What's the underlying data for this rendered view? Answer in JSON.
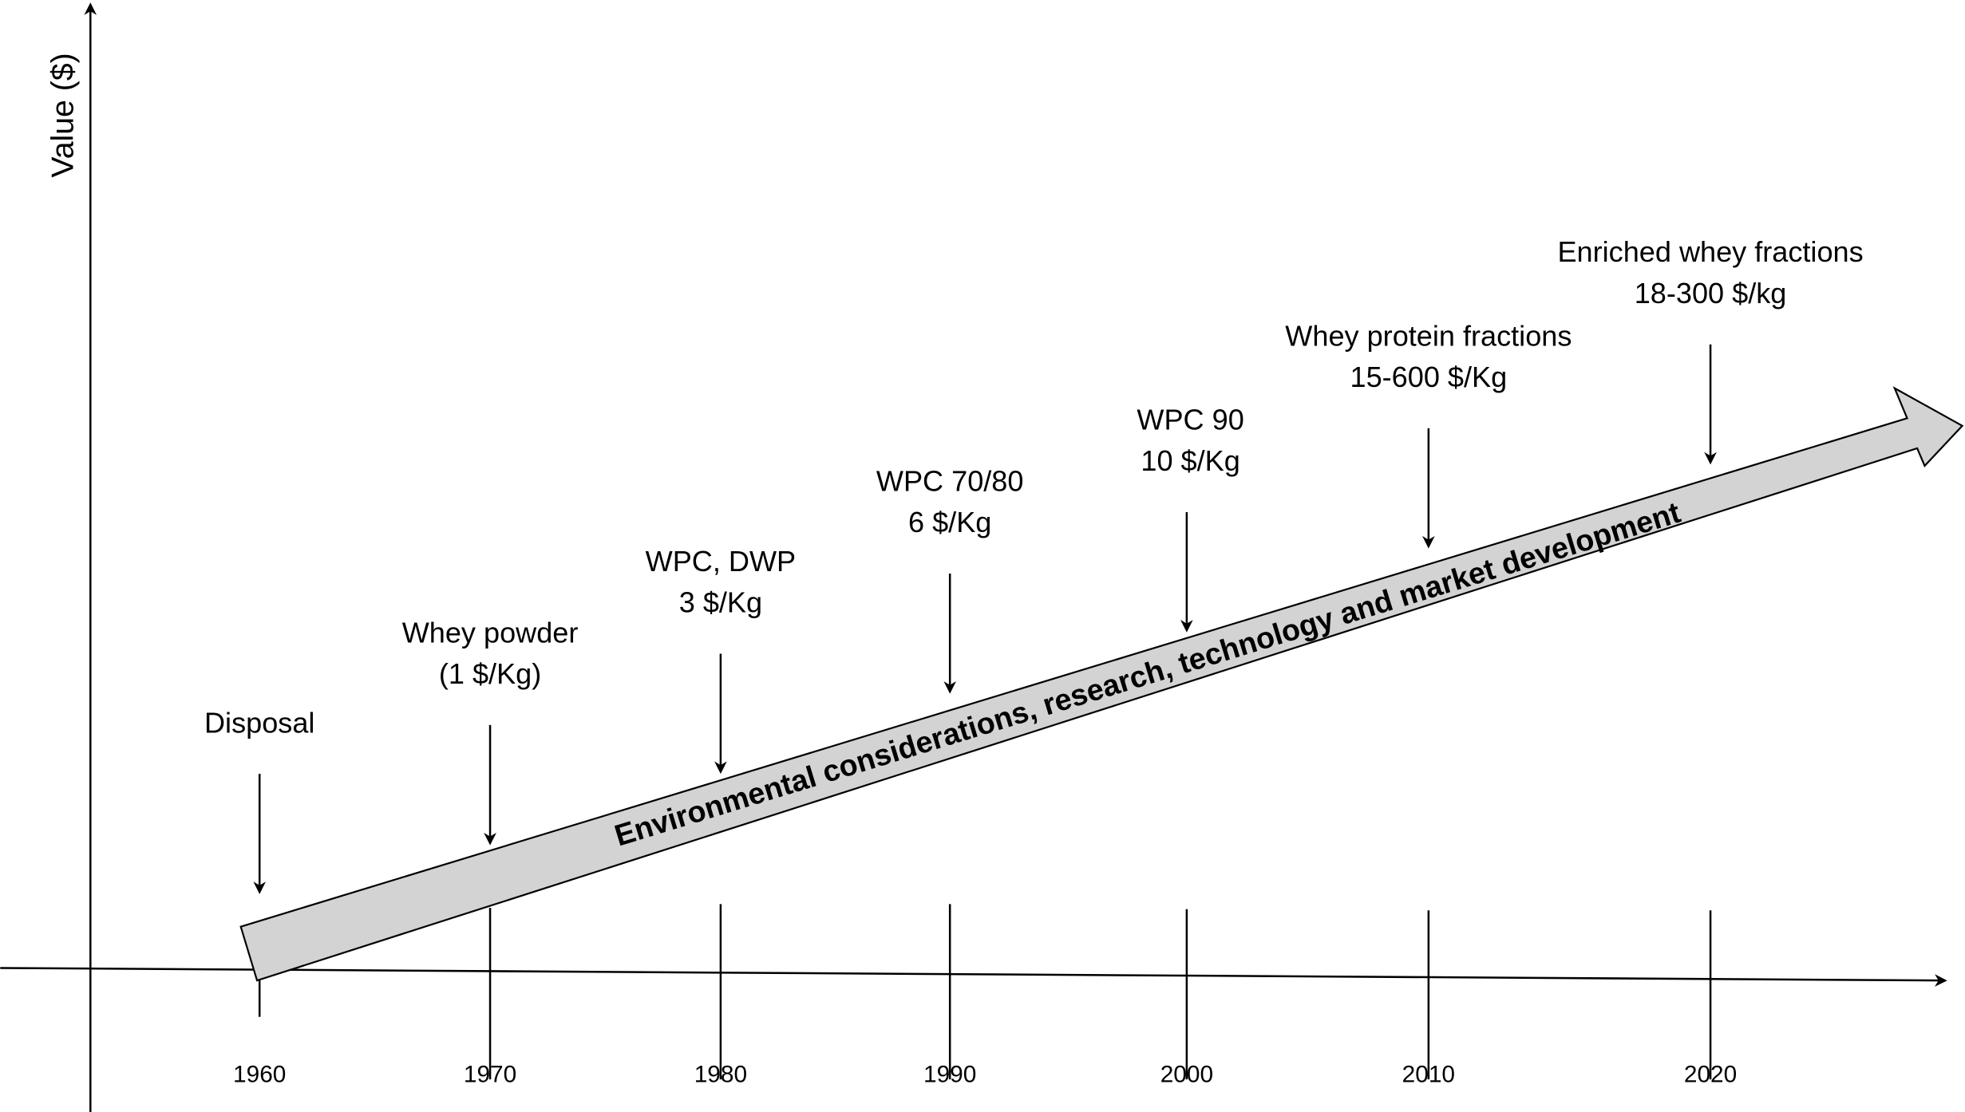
{
  "y_axis_label": "Value ($)",
  "band_text": "Environmental considerations, research, technology and market development",
  "band_fill": "#d3d3d3",
  "years": [
    "1960",
    "1970",
    "1980",
    "1990",
    "2000",
    "2010",
    "2020"
  ],
  "milestones": [
    {
      "year": "1960",
      "line1": "Disposal",
      "line2": ""
    },
    {
      "year": "1970",
      "line1": "Whey powder",
      "line2": "(1 $/Kg)"
    },
    {
      "year": "1980",
      "line1": "WPC, DWP",
      "line2": "3 $/Kg"
    },
    {
      "year": "1990",
      "line1": "WPC 70/80",
      "line2": "6 $/Kg"
    },
    {
      "year": "2000",
      "line1": "WPC 90",
      "line2": "10 $/Kg"
    },
    {
      "year": "2010",
      "line1": "Whey protein fractions",
      "line2": "15-600 $/Kg"
    },
    {
      "year": "2020",
      "line1": "Enriched whey fractions",
      "line2": "18-300 $/kg"
    }
  ]
}
